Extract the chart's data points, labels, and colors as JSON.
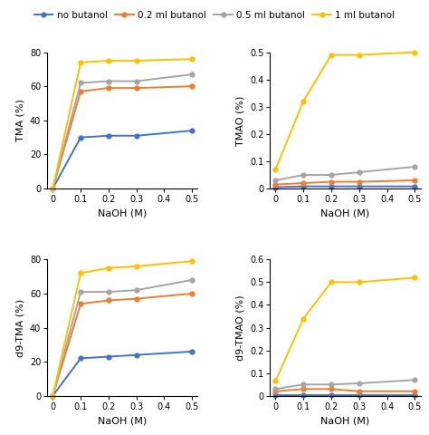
{
  "x": [
    0,
    0.1,
    0.2,
    0.3,
    0.5
  ],
  "legend_labels": [
    "no butanol",
    "0.2 ml butanol",
    "0.5 ml butanol",
    "1 ml butanol"
  ],
  "colors": [
    "#4472c4",
    "#ed7d31",
    "#a5a5a5",
    "#ffc000"
  ],
  "subplot_data": {
    "TMA (%)": {
      "no butanol": [
        0,
        30,
        31,
        31,
        34
      ],
      "0.2 ml butanol": [
        0,
        57,
        59,
        59,
        60
      ],
      "0.5 ml butanol": [
        0,
        62,
        63,
        63,
        67
      ],
      "1 ml butanol": [
        0,
        74,
        75,
        75,
        76
      ]
    },
    "TMAO (%)": {
      "no butanol": [
        0.005,
        0.008,
        0.008,
        0.008,
        0.008
      ],
      "0.2 ml butanol": [
        0.015,
        0.02,
        0.025,
        0.025,
        0.03
      ],
      "0.5 ml butanol": [
        0.03,
        0.05,
        0.05,
        0.06,
        0.08
      ],
      "1 ml butanol": [
        0.07,
        0.32,
        0.49,
        0.49,
        0.5
      ]
    },
    "d9-TMA (%)": {
      "no butanol": [
        0,
        22,
        23,
        24,
        26
      ],
      "0.2 ml butanol": [
        0,
        54,
        56,
        57,
        60
      ],
      "0.5 ml butanol": [
        0,
        61,
        61,
        62,
        68
      ],
      "1 ml butanol": [
        0,
        72,
        75,
        76,
        79
      ]
    },
    "d9-TMAO (%)": {
      "no butanol": [
        0.003,
        0.003,
        0.003,
        0.003,
        0.003
      ],
      "0.2 ml butanol": [
        0.02,
        0.03,
        0.03,
        0.02,
        0.02
      ],
      "0.5 ml butanol": [
        0.03,
        0.05,
        0.05,
        0.055,
        0.07
      ],
      "1 ml butanol": [
        0.065,
        0.34,
        0.5,
        0.5,
        0.52
      ]
    }
  },
  "ylims": {
    "TMA (%)": [
      0,
      80
    ],
    "TMAO (%)": [
      0,
      0.5
    ],
    "d9-TMA (%)": [
      0,
      80
    ],
    "d9-TMAO (%)": [
      0,
      0.6
    ]
  },
  "yticks": {
    "TMA (%)": [
      0,
      20,
      40,
      60,
      80
    ],
    "TMAO (%)": [
      0,
      0.1,
      0.2,
      0.3,
      0.4,
      0.5
    ],
    "d9-TMA (%)": [
      0,
      20,
      40,
      60,
      80
    ],
    "d9-TMAO (%)": [
      0,
      0.1,
      0.2,
      0.3,
      0.4,
      0.5,
      0.6
    ]
  },
  "xlabel": "NaOH (M)",
  "xticks": [
    0,
    0.1,
    0.2,
    0.3,
    0.4,
    0.5
  ],
  "xtick_labels": [
    "0",
    "0.1",
    "0.2",
    "0.3",
    "0.4",
    "0.5"
  ],
  "subplot_order": [
    "TMA (%)",
    "TMAO (%)",
    "d9-TMA (%)",
    "d9-TMAO (%)"
  ],
  "background_color": "#ffffff",
  "marker": "o",
  "markersize": 3.5,
  "linewidth": 1.4,
  "tick_fontsize": 7,
  "label_fontsize": 8,
  "legend_fontsize": 7.5
}
